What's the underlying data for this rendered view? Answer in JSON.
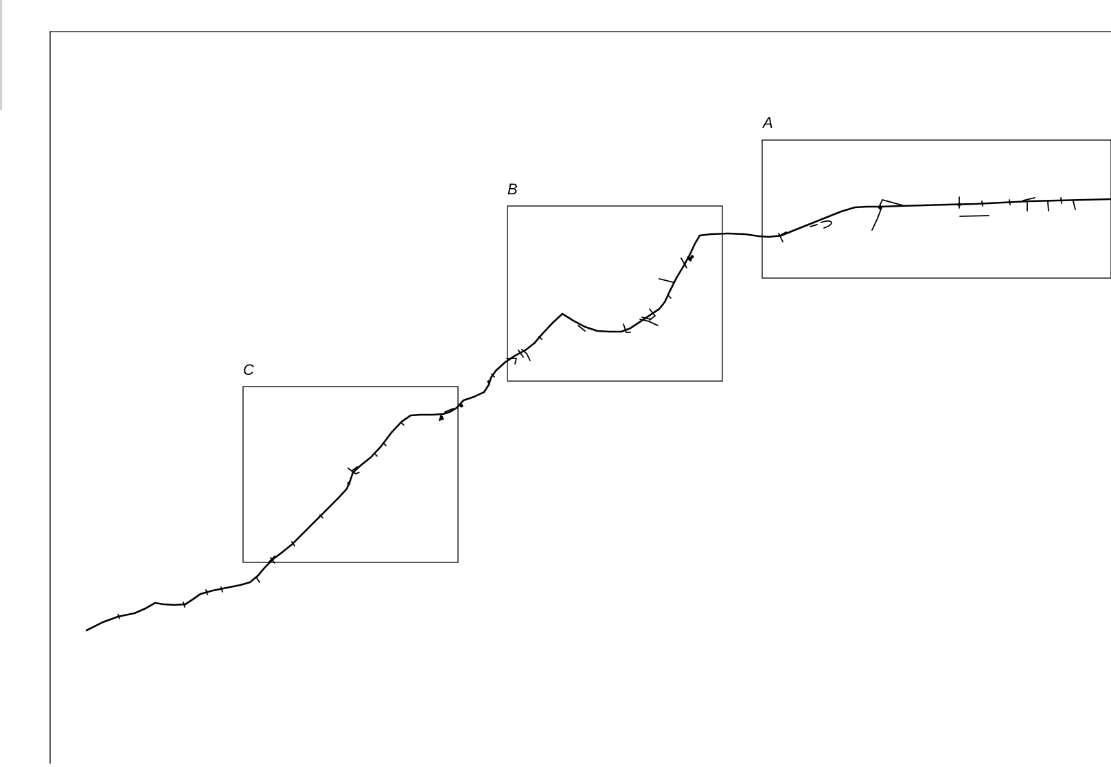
{
  "diagram": {
    "regions": [
      {
        "id": "A",
        "label": "A"
      },
      {
        "id": "B",
        "label": "B"
      },
      {
        "id": "C",
        "label": "C"
      }
    ]
  },
  "colors": {
    "background": "#ffffff",
    "line": "#000000",
    "left_edge_bar": "#cfcfcf"
  }
}
